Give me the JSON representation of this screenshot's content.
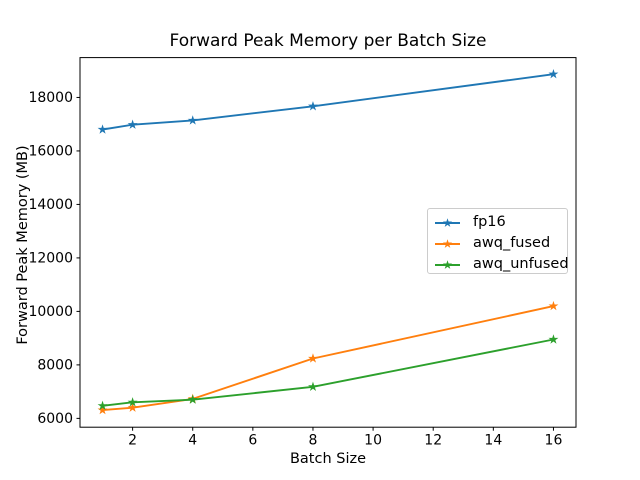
{
  "chart_data": {
    "type": "line",
    "title": "Forward Peak Memory per Batch Size",
    "xlabel": "Batch Size",
    "ylabel": "Forward Peak Memory (MB)",
    "x": [
      1,
      2,
      4,
      8,
      16
    ],
    "series": [
      {
        "name": "fp16",
        "color": "#1f77b4",
        "marker": "star",
        "values": [
          16800,
          16980,
          17140,
          17670,
          18870
        ]
      },
      {
        "name": "awq_fused",
        "color": "#ff7f0e",
        "marker": "star",
        "values": [
          6310,
          6400,
          6730,
          8240,
          10200
        ]
      },
      {
        "name": "awq_unfused",
        "color": "#2ca02c",
        "marker": "star",
        "values": [
          6470,
          6600,
          6700,
          7180,
          8950
        ]
      }
    ],
    "xticks": [
      2,
      4,
      6,
      8,
      10,
      12,
      14,
      16
    ],
    "yticks": [
      6000,
      8000,
      10000,
      12000,
      14000,
      16000,
      18000
    ],
    "xlim": [
      0.25,
      16.75
    ],
    "ylim": [
      5670,
      19490
    ],
    "grid": false,
    "legend_position": "center-right",
    "background_color": "#ffffff",
    "axis_color": "#000000",
    "legend_border_color": "#cccccc"
  }
}
